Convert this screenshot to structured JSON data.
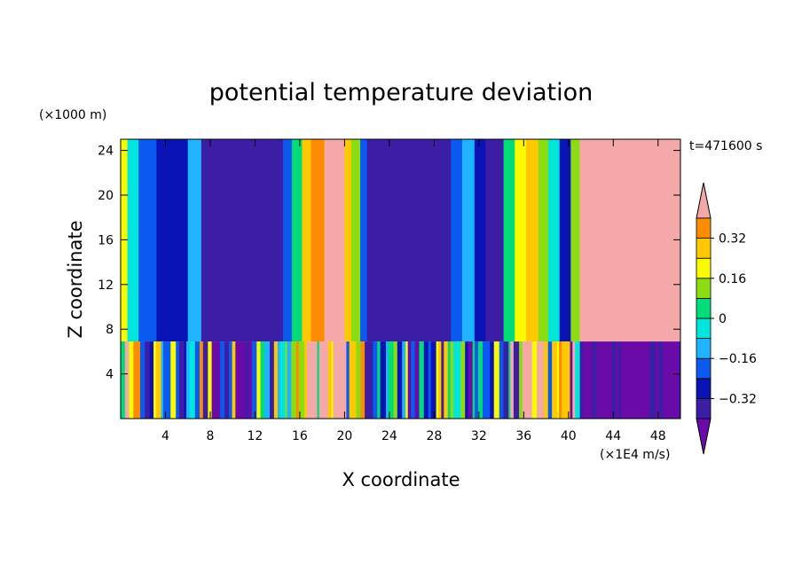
{
  "chart_data": {
    "type": "heatmap",
    "title": "potential temperature deviation",
    "xlabel": "X coordinate",
    "ylabel": "Z coordinate",
    "x_units": "(×1E4 m/s)",
    "y_units": "(×1000 m)",
    "time_label": "t=471600 s",
    "xlim": [
      0,
      50
    ],
    "ylim": [
      0,
      25
    ],
    "x_ticks": [
      4,
      8,
      12,
      16,
      20,
      24,
      28,
      32,
      36,
      40,
      44,
      48
    ],
    "y_ticks": [
      4,
      8,
      12,
      16,
      20,
      24
    ],
    "colorbar": {
      "levels": [
        -0.4,
        -0.32,
        -0.24,
        -0.16,
        -0.08,
        0,
        0.08,
        0.16,
        0.24,
        0.32,
        0.4
      ],
      "labeled_levels": [
        0.32,
        0.16,
        0,
        -0.16,
        -0.32
      ],
      "tick_labels": [
        "0.32",
        "0.16",
        "0",
        "−0.16",
        "−0.32"
      ],
      "colors": [
        "#6a0aa8",
        "#3c1ea6",
        "#0a14b4",
        "#0a5af0",
        "#1eb4ff",
        "#00e6dc",
        "#00dc78",
        "#8cdc14",
        "#fafa00",
        "#ffc800",
        "#ff8c00",
        "#f52814",
        "#f5a8a8"
      ]
    },
    "upper_layer_bands": [
      {
        "x0": 0.0,
        "x1": 0.6,
        "value": 0.2
      },
      {
        "x0": 0.6,
        "x1": 1.6,
        "value": -0.05
      },
      {
        "x0": 1.6,
        "x1": 3.2,
        "value": -0.22
      },
      {
        "x0": 3.2,
        "x1": 6.0,
        "value": -0.3
      },
      {
        "x0": 6.0,
        "x1": 7.2,
        "value": -0.12
      },
      {
        "x0": 7.2,
        "x1": 14.5,
        "value": -0.38
      },
      {
        "x0": 14.5,
        "x1": 15.3,
        "value": -0.2
      },
      {
        "x0": 15.3,
        "x1": 16.2,
        "value": 0.05
      },
      {
        "x0": 16.2,
        "x1": 17.0,
        "value": 0.25
      },
      {
        "x0": 17.0,
        "x1": 18.2,
        "value": 0.33
      },
      {
        "x0": 18.2,
        "x1": 20.0,
        "value": 0.42
      },
      {
        "x0": 20.0,
        "x1": 20.6,
        "value": 0.3
      },
      {
        "x0": 20.6,
        "x1": 21.4,
        "value": 0.12
      },
      {
        "x0": 21.4,
        "x1": 22.0,
        "value": -0.2
      },
      {
        "x0": 22.0,
        "x1": 29.5,
        "value": -0.36
      },
      {
        "x0": 29.5,
        "x1": 30.5,
        "value": -0.22
      },
      {
        "x0": 30.5,
        "x1": 31.6,
        "value": -0.1
      },
      {
        "x0": 31.6,
        "x1": 32.6,
        "value": -0.3
      },
      {
        "x0": 32.6,
        "x1": 34.2,
        "value": -0.38
      },
      {
        "x0": 34.2,
        "x1": 35.2,
        "value": 0.02
      },
      {
        "x0": 35.2,
        "x1": 36.2,
        "value": 0.2
      },
      {
        "x0": 36.2,
        "x1": 37.3,
        "value": 0.3
      },
      {
        "x0": 37.3,
        "x1": 38.2,
        "value": 0.15
      },
      {
        "x0": 38.2,
        "x1": 39.2,
        "value": -0.05
      },
      {
        "x0": 39.2,
        "x1": 40.2,
        "value": -0.28
      },
      {
        "x0": 40.2,
        "x1": 41.0,
        "value": 0.1
      },
      {
        "x0": 41.0,
        "x1": 50.0,
        "value": 0.45
      }
    ],
    "layer_boundary_z": 6.9
  }
}
